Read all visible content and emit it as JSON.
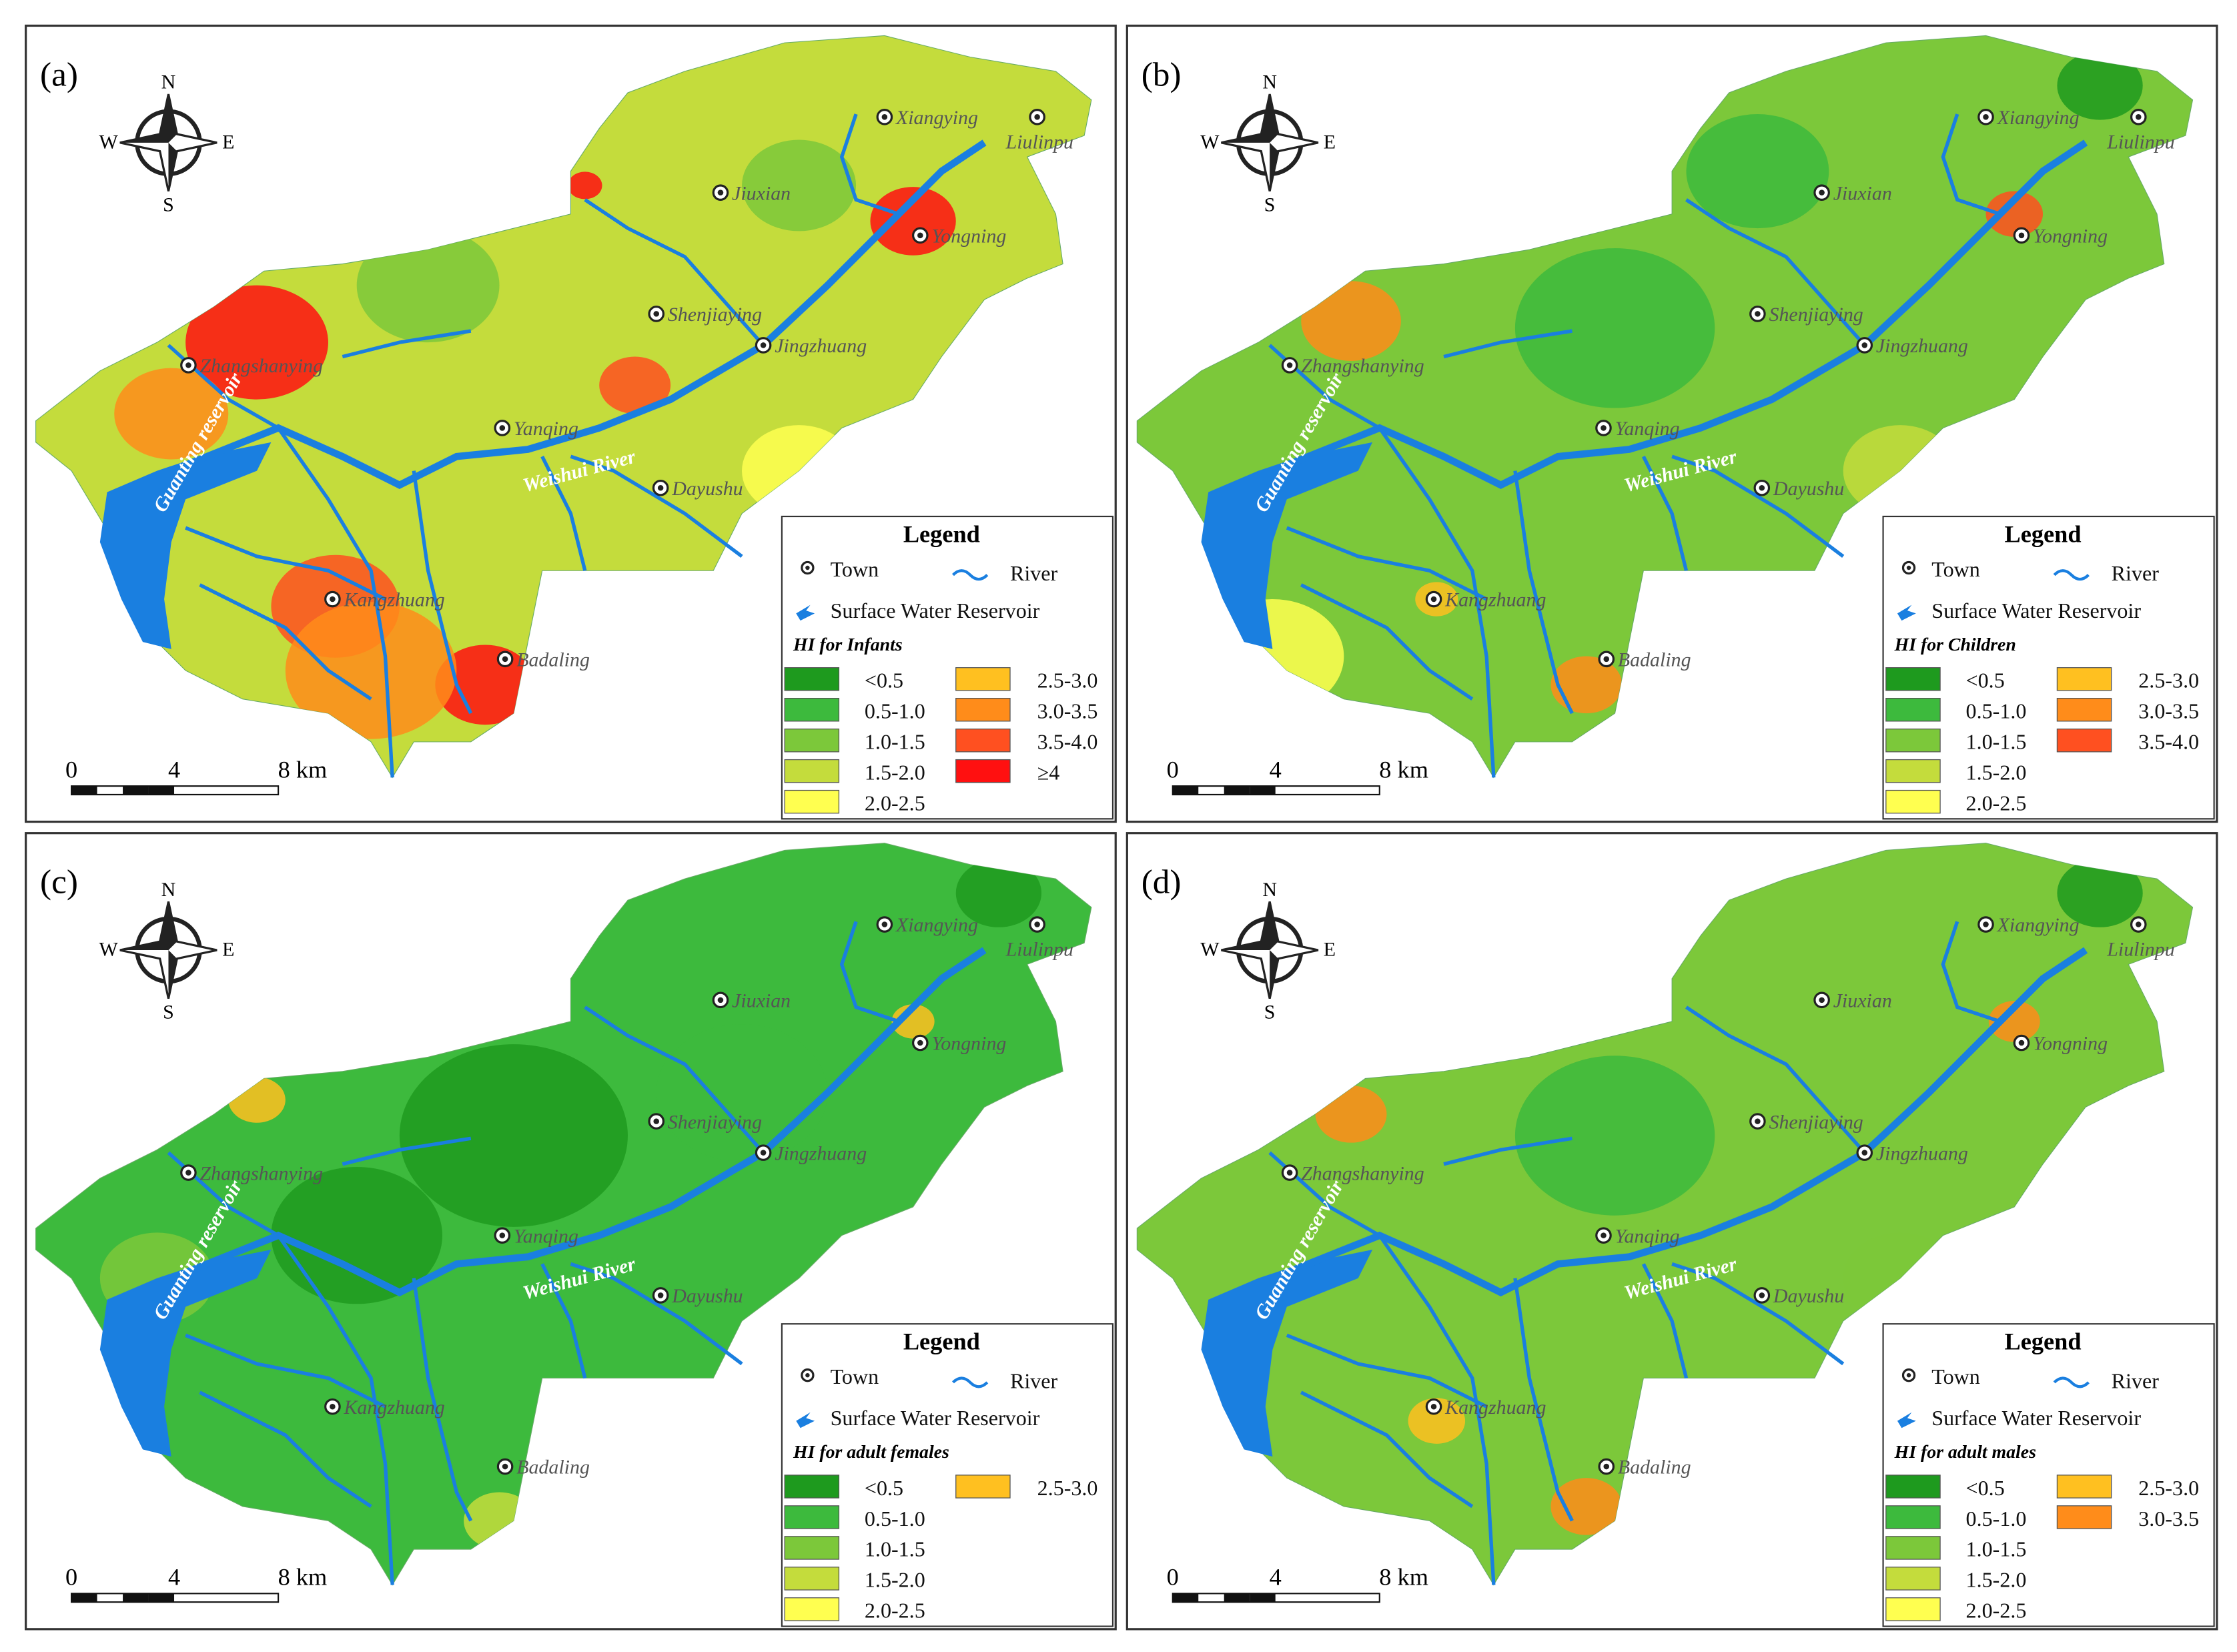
{
  "compass": {
    "n": "N",
    "s": "S",
    "e": "E",
    "w": "W"
  },
  "scale_bar": [
    "0",
    "4",
    "8 km"
  ],
  "towns": [
    "Xiangying",
    "Liulinpu",
    "Jiuxian",
    "Yongning",
    "Shenjiaying",
    "Jingzhuang",
    "Zhangshanying",
    "Yanqing",
    "Dayushu",
    "Kangzhuang",
    "Badaling"
  ],
  "water_labels": [
    "Guanting reservoir",
    "Weishui River"
  ],
  "legend": {
    "title": "Legend",
    "town": "Town",
    "river": "River",
    "reservoir": "Surface Water Reservoir"
  },
  "classes": [
    {
      "label": "<0.5",
      "color": "#1e9a1e"
    },
    {
      "label": "0.5-1.0",
      "color": "#3dba3d"
    },
    {
      "label": "1.0-1.5",
      "color": "#7cc83a"
    },
    {
      "label": "1.5-2.0",
      "color": "#c4dc3c"
    },
    {
      "label": "2.0-2.5",
      "color": "#ffff50"
    },
    {
      "label": "2.5-3.0",
      "color": "#ffc020"
    },
    {
      "label": "3.0-3.5",
      "color": "#ff8c1a"
    },
    {
      "label": "3.5-4.0",
      "color": "#ff5020"
    },
    {
      "label": "≥4",
      "color": "#ff1010"
    }
  ],
  "panels": [
    {
      "label": "(a)",
      "hi_title": "HI for Infants",
      "class_count": 9
    },
    {
      "label": "(b)",
      "hi_title": "HI for Children",
      "class_count": 8
    },
    {
      "label": "(c)",
      "hi_title": "HI for adult females",
      "class_count": 6
    },
    {
      "label": "(d)",
      "hi_title": "HI for adult males",
      "class_count": 7
    }
  ]
}
